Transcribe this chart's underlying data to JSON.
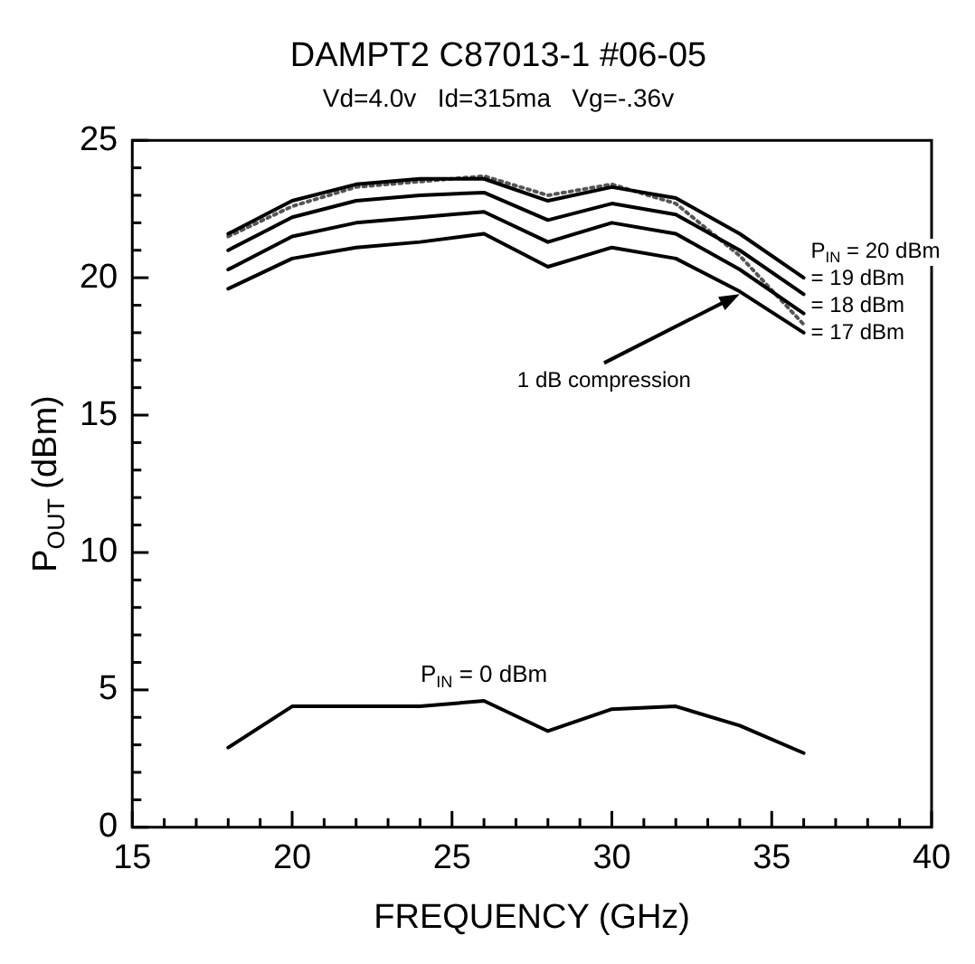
{
  "chart_data": {
    "type": "line",
    "title": "DAMPT2 C87013-1 #06-05",
    "subtitle": "Vd=4.0v   Id=315ma   Vg=-.36v",
    "xlabel": "FREQUENCY (GHz)",
    "ylabel": "P$_{OUT}$ (dBm)",
    "x": [
      18,
      20,
      22,
      24,
      26,
      28,
      30,
      32,
      34,
      36
    ],
    "series": [
      {
        "name": "P$_{IN}$ = 20 dBm",
        "color": "#000000",
        "values": [
          21.6,
          22.8,
          23.4,
          23.6,
          23.6,
          22.8,
          23.3,
          22.9,
          21.6,
          20.0
        ]
      },
      {
        "name": "= 19 dBm",
        "color": "#000000",
        "values": [
          21.0,
          22.2,
          22.8,
          23.0,
          23.1,
          22.1,
          22.7,
          22.3,
          21.0,
          19.4
        ]
      },
      {
        "name": "= 18 dBm",
        "color": "#000000",
        "values": [
          20.3,
          21.5,
          22.0,
          22.2,
          22.4,
          21.3,
          22.0,
          21.6,
          20.3,
          18.7
        ]
      },
      {
        "name": "= 17 dBm",
        "color": "#000000",
        "values": [
          19.6,
          20.7,
          21.1,
          21.3,
          21.6,
          20.4,
          21.1,
          20.7,
          19.5,
          18.0
        ]
      },
      {
        "color": "#555555",
        "line_style": "dotted",
        "values": [
          21.5,
          22.6,
          23.3,
          23.5,
          23.7,
          23.0,
          23.4,
          22.7,
          20.8,
          18.3
        ]
      },
      {
        "name": "P$_{IN}$ = 0 dBm",
        "color": "#000000",
        "values": [
          2.9,
          4.4,
          4.4,
          4.4,
          4.6,
          3.5,
          4.3,
          4.4,
          3.7,
          2.7
        ]
      }
    ],
    "annotations": [
      {
        "text": "1 dB compression",
        "x": 34,
        "y": 19.4
      }
    ],
    "xlim": [
      15,
      40
    ],
    "ylim": [
      0,
      25
    ],
    "xticks": [
      15,
      {
        "value": 16,
        "label": null
      },
      {
        "value": 17,
        "label": null
      },
      {
        "value": 18,
        "label": null
      },
      {
        "value": 19,
        "label": null
      },
      20,
      {
        "value": 21,
        "label": null
      },
      {
        "value": 22,
        "label": null
      },
      {
        "value": 23,
        "label": null
      },
      {
        "value": 24,
        "label": null
      },
      25,
      {
        "value": 26,
        "label": null
      },
      {
        "value": 27,
        "label": null
      },
      {
        "value": 28,
        "label": null
      },
      {
        "value": 29,
        "label": null
      },
      30,
      {
        "value": 31,
        "label": null
      },
      {
        "value": 32,
        "label": null
      },
      {
        "value": 33,
        "label": null
      },
      {
        "value": 34,
        "label": null
      },
      35,
      {
        "value": 36,
        "label": null
      },
      {
        "value": 37,
        "label": null
      },
      {
        "value": 38,
        "label": null
      },
      {
        "value": 39,
        "label": null
      },
      40
    ],
    "yticks": [
      0,
      {
        "value": 1,
        "label": null
      },
      {
        "value": 2,
        "label": null
      },
      {
        "value": 3,
        "label": null
      },
      {
        "value": 4,
        "label": null
      },
      5,
      {
        "value": 6,
        "label": null
      },
      {
        "value": 7,
        "label": null
      },
      {
        "value": 8,
        "label": null
      },
      {
        "value": 9,
        "label": null
      },
      10,
      {
        "value": 11,
        "label": null
      },
      {
        "value": 12,
        "label": null
      },
      {
        "value": 13,
        "label": null
      },
      {
        "value": 14,
        "label": null
      },
      15,
      {
        "value": 16,
        "label": null
      },
      {
        "value": 17,
        "label": null
      },
      {
        "value": 18,
        "label": null
      },
      {
        "value": 19,
        "label": null
      },
      20,
      {
        "value": 21,
        "label": null
      },
      {
        "value": 22,
        "label": null
      },
      {
        "value": 23,
        "label": null
      },
      {
        "value": 24,
        "label": null
      },
      25
    ],
    "grid": false,
    "legend": false,
    "marker": "none",
    "line_style": "solid"
  }
}
